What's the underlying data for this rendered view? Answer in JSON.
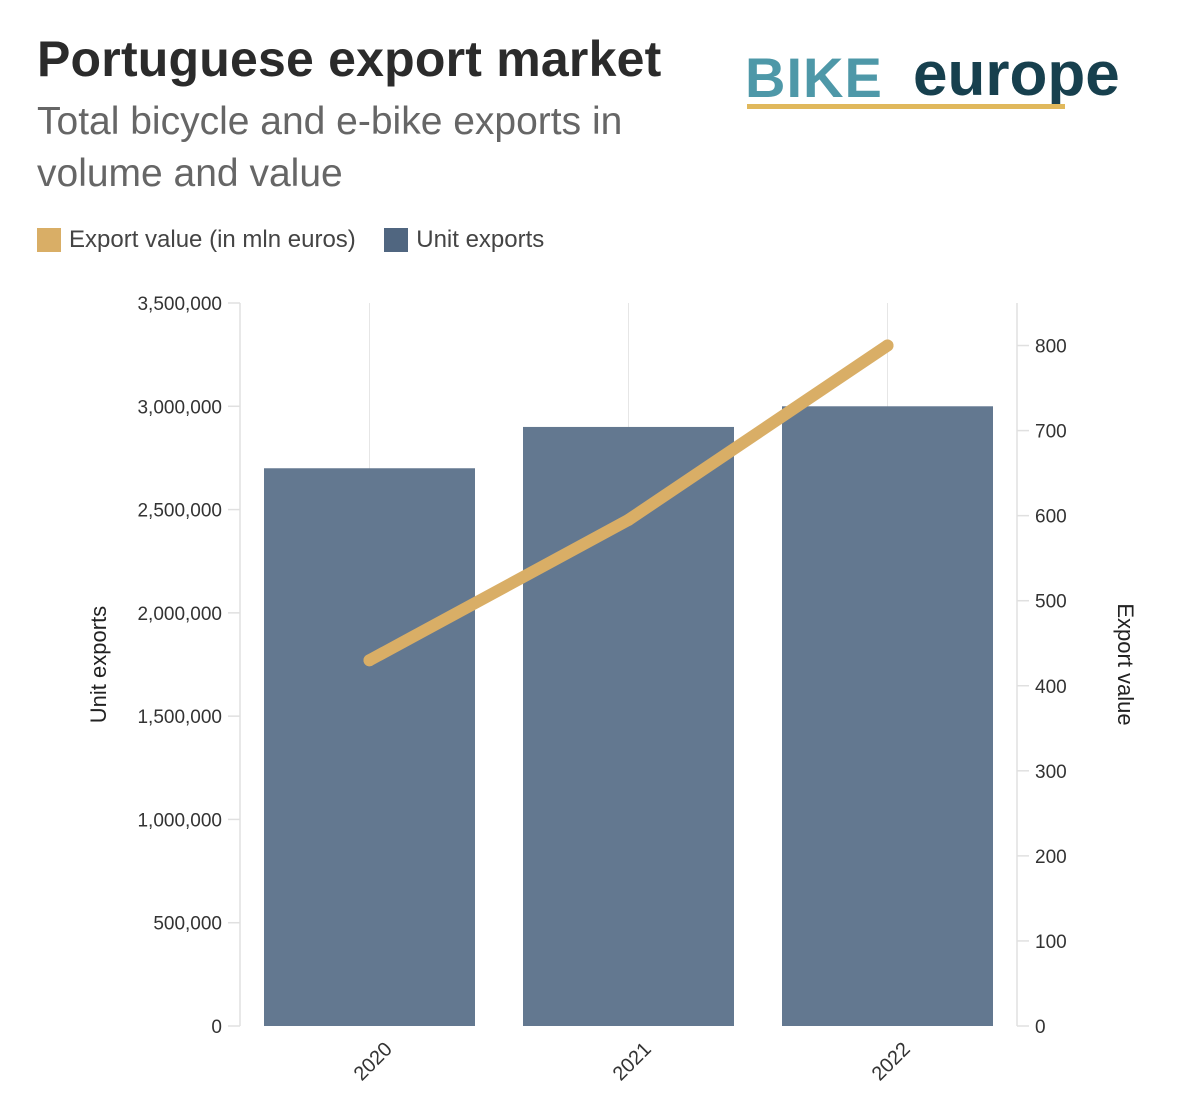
{
  "header": {
    "title": "Portuguese export market",
    "subtitle": "Total bicycle and e-bike exports in volume and value"
  },
  "logo": {
    "part1": "BIKE",
    "part2": "europe",
    "colors": {
      "part1": "#4e98a8",
      "part2": "#17404e",
      "underline": "#e0b85c"
    }
  },
  "legend": [
    {
      "label": "Export value (in mln euros)",
      "color": "#d9ae66"
    },
    {
      "label": "Unit exports",
      "color": "#506680"
    }
  ],
  "chart_data": {
    "type": "bar",
    "title": "Portuguese export market",
    "subtitle": "Total bicycle and e-bike exports in volume and value",
    "categories": [
      "2020",
      "2021",
      "2022"
    ],
    "series": [
      {
        "name": "Unit exports",
        "type": "bar",
        "axis": "left",
        "values": [
          2700000,
          2900000,
          3000000
        ],
        "color": "#637890"
      },
      {
        "name": "Export value (in mln euros)",
        "type": "line",
        "axis": "right",
        "values": [
          430,
          595,
          800
        ],
        "color": "#d9ae66"
      }
    ],
    "xlabel": "",
    "ylabel": "Unit exports",
    "y2label": "Export value",
    "ylim": [
      0,
      3500000
    ],
    "y2lim": [
      0,
      850
    ],
    "yticks": [
      "0",
      "500,000",
      "1,000,000",
      "1,500,000",
      "2,000,000",
      "2,500,000",
      "3,000,000",
      "3,500,000"
    ],
    "ytick_values": [
      0,
      500000,
      1000000,
      1500000,
      2000000,
      2500000,
      3000000,
      3500000
    ],
    "y2ticks": [
      "0",
      "100",
      "200",
      "300",
      "400",
      "500",
      "600",
      "700",
      "800"
    ],
    "y2tick_values": [
      0,
      100,
      200,
      300,
      400,
      500,
      600,
      700,
      800
    ],
    "grid": true,
    "legend_position": "top-left"
  }
}
